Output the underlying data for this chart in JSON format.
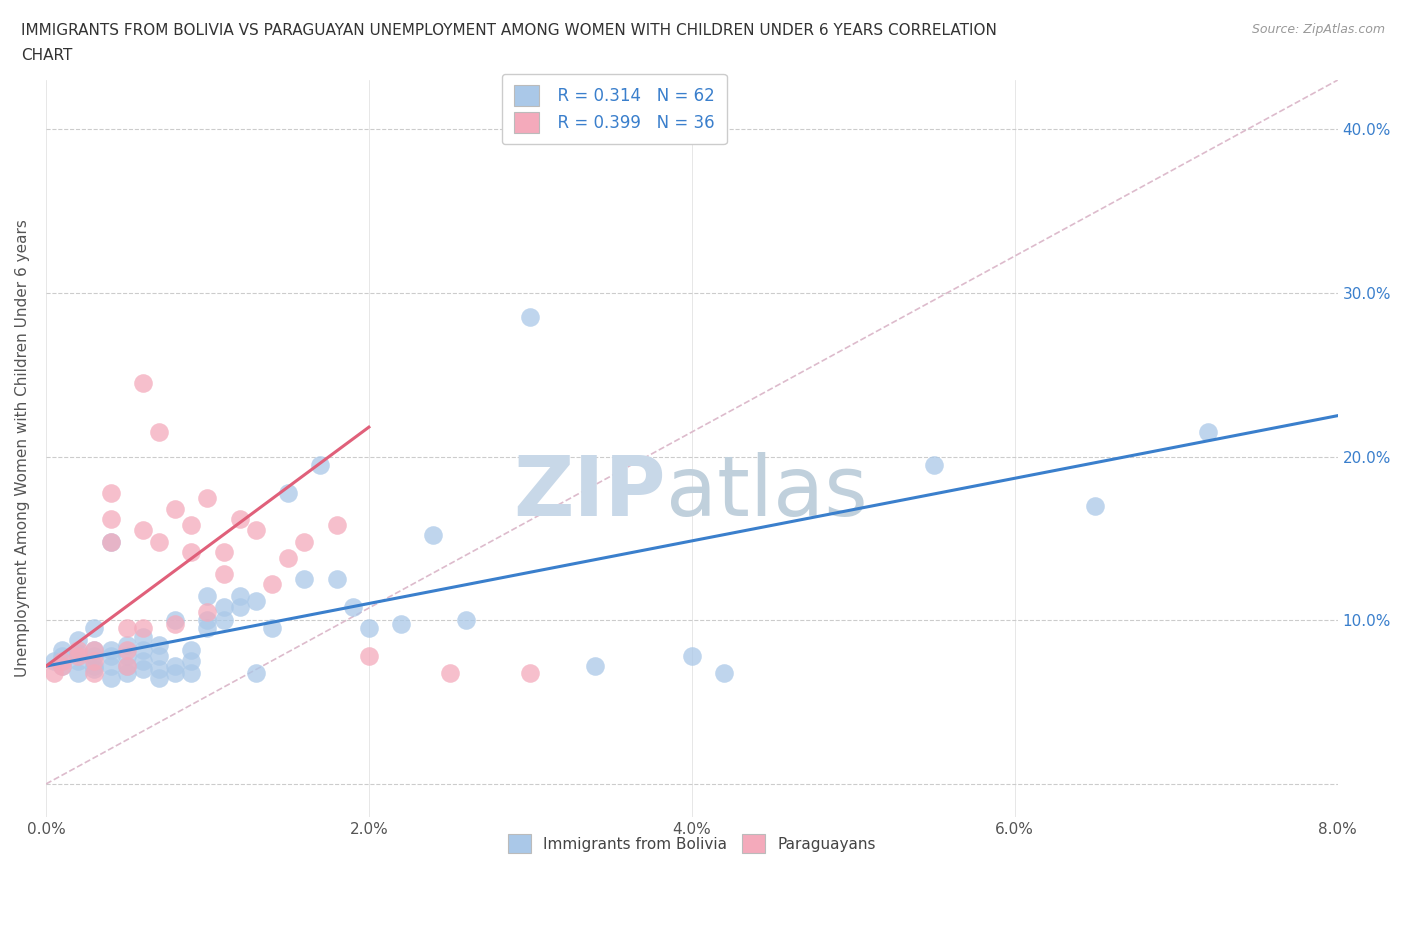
{
  "title_line1": "IMMIGRANTS FROM BOLIVIA VS PARAGUAYAN UNEMPLOYMENT AMONG WOMEN WITH CHILDREN UNDER 6 YEARS CORRELATION",
  "title_line2": "CHART",
  "source_text": "Source: ZipAtlas.com",
  "xlabel": "Immigrants from Bolivia",
  "ylabel": "Unemployment Among Women with Children Under 6 years",
  "xlim": [
    0.0,
    0.08
  ],
  "ylim": [
    -0.02,
    0.43
  ],
  "xticks": [
    0.0,
    0.02,
    0.04,
    0.06,
    0.08
  ],
  "xtick_labels": [
    "0.0%",
    "2.0%",
    "4.0%",
    "6.0%",
    "8.0%"
  ],
  "yticks": [
    0.0,
    0.1,
    0.2,
    0.3,
    0.4
  ],
  "ytick_labels_right": [
    "",
    "10.0%",
    "20.0%",
    "30.0%",
    "40.0%"
  ],
  "legend_R1": "R = 0.314",
  "legend_N1": "N = 62",
  "legend_R2": "R = 0.399",
  "legend_N2": "N = 36",
  "color_bolivia": "#aac8e8",
  "color_paraguay": "#f4aabb",
  "trend_color_bolivia": "#3a7fcc",
  "trend_color_paraguay": "#e0607a",
  "diag_color": "#ddbbcc",
  "watermark_zip": "ZIP",
  "watermark_atlas": "atlas",
  "watermark_color_zip": "#c8d8e8",
  "watermark_color_atlas": "#c0d0dc",
  "background_color": "#ffffff",
  "bolivia_x": [
    0.0005,
    0.001,
    0.001,
    0.001,
    0.002,
    0.002,
    0.002,
    0.002,
    0.003,
    0.003,
    0.003,
    0.003,
    0.003,
    0.004,
    0.004,
    0.004,
    0.004,
    0.004,
    0.005,
    0.005,
    0.005,
    0.005,
    0.006,
    0.006,
    0.006,
    0.006,
    0.007,
    0.007,
    0.007,
    0.007,
    0.008,
    0.008,
    0.008,
    0.009,
    0.009,
    0.009,
    0.01,
    0.01,
    0.01,
    0.011,
    0.011,
    0.012,
    0.012,
    0.013,
    0.013,
    0.014,
    0.015,
    0.016,
    0.017,
    0.018,
    0.019,
    0.02,
    0.022,
    0.024,
    0.026,
    0.03,
    0.034,
    0.04,
    0.042,
    0.055,
    0.065,
    0.072
  ],
  "bolivia_y": [
    0.075,
    0.072,
    0.078,
    0.082,
    0.068,
    0.075,
    0.08,
    0.088,
    0.07,
    0.072,
    0.078,
    0.082,
    0.095,
    0.065,
    0.072,
    0.078,
    0.082,
    0.148,
    0.068,
    0.072,
    0.078,
    0.085,
    0.07,
    0.075,
    0.082,
    0.09,
    0.065,
    0.07,
    0.078,
    0.085,
    0.068,
    0.072,
    0.1,
    0.068,
    0.075,
    0.082,
    0.095,
    0.1,
    0.115,
    0.1,
    0.108,
    0.108,
    0.115,
    0.068,
    0.112,
    0.095,
    0.178,
    0.125,
    0.195,
    0.125,
    0.108,
    0.095,
    0.098,
    0.152,
    0.1,
    0.285,
    0.072,
    0.078,
    0.068,
    0.195,
    0.17,
    0.215
  ],
  "paraguay_x": [
    0.0005,
    0.001,
    0.001,
    0.002,
    0.002,
    0.003,
    0.003,
    0.003,
    0.004,
    0.004,
    0.004,
    0.005,
    0.005,
    0.005,
    0.006,
    0.006,
    0.006,
    0.007,
    0.007,
    0.008,
    0.008,
    0.009,
    0.009,
    0.01,
    0.01,
    0.011,
    0.011,
    0.012,
    0.013,
    0.014,
    0.015,
    0.016,
    0.018,
    0.02,
    0.025,
    0.03
  ],
  "paraguay_y": [
    0.068,
    0.072,
    0.075,
    0.078,
    0.082,
    0.068,
    0.075,
    0.082,
    0.148,
    0.162,
    0.178,
    0.072,
    0.082,
    0.095,
    0.245,
    0.155,
    0.095,
    0.148,
    0.215,
    0.168,
    0.098,
    0.142,
    0.158,
    0.175,
    0.105,
    0.128,
    0.142,
    0.162,
    0.155,
    0.122,
    0.138,
    0.148,
    0.158,
    0.078,
    0.068,
    0.068
  ],
  "bolivia_trend_x": [
    0.0,
    0.08
  ],
  "bolivia_trend_y": [
    0.072,
    0.225
  ],
  "paraguay_trend_x": [
    0.0,
    0.02
  ],
  "paraguay_trend_y": [
    0.072,
    0.218
  ]
}
